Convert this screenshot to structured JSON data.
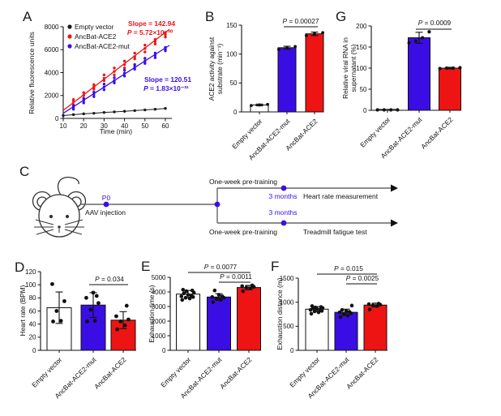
{
  "figure_bg": "#ffffff",
  "colors": {
    "black": "#1a1a1a",
    "red": "#ee1414",
    "blue": "#3b0de5",
    "white": "#ffffff",
    "diagram_line": "#666666"
  },
  "panel_labels": {
    "a": "A",
    "b": "B",
    "c": "C",
    "d": "D",
    "e": "E",
    "f": "F",
    "g": "G"
  },
  "panel_c": {
    "p0": "P0",
    "aav": "AAV injection",
    "pretrain_top": "One-week pre-training",
    "pretrain_bottom": "One-week pre-training",
    "months_top": "3 months",
    "months_bottom": "3 months",
    "outcome_top": "Heart rate measurement",
    "outcome_bottom": "Treadmill fatigue test"
  },
  "chart_data": [
    {
      "id": "A",
      "type": "scatter",
      "xlabel": "Time (min)",
      "ylabel": "Relative fluorescence units",
      "xlim": [
        10,
        62
      ],
      "ylim": [
        0,
        8000
      ],
      "xticks": [
        10,
        20,
        30,
        40,
        50,
        60
      ],
      "yticks": [
        0,
        2000,
        4000,
        6000,
        8000
      ],
      "legend_position": "top-left",
      "series": [
        {
          "name": "Empty vector",
          "color": "black",
          "connect": true,
          "points": [
            [
              10,
              250
            ],
            [
              15,
              330
            ],
            [
              20,
              400
            ],
            [
              25,
              450
            ],
            [
              30,
              520
            ],
            [
              35,
              570
            ],
            [
              40,
              620
            ],
            [
              45,
              680
            ],
            [
              50,
              740
            ],
            [
              55,
              800
            ],
            [
              60,
              870
            ]
          ]
        },
        {
          "name": "AncBat-ACE2",
          "color": "red",
          "slope_label": "Slope = 142.94",
          "p_label": "P = 5.72×10⁻³⁰",
          "fit": [
            [
              10,
              700
            ],
            [
              62,
              7780
            ]
          ],
          "points": [
            [
              15,
              1200
            ],
            [
              15,
              1450
            ],
            [
              15,
              1650
            ],
            [
              20,
              1750
            ],
            [
              20,
              2000
            ],
            [
              20,
              2250
            ],
            [
              25,
              2550
            ],
            [
              25,
              2750
            ],
            [
              25,
              2950
            ],
            [
              30,
              3300
            ],
            [
              30,
              3500
            ],
            [
              30,
              3800
            ],
            [
              35,
              3800
            ],
            [
              35,
              4100
            ],
            [
              35,
              4400
            ],
            [
              40,
              4400
            ],
            [
              40,
              4700
            ],
            [
              40,
              5000
            ],
            [
              45,
              5200
            ],
            [
              45,
              5400
            ],
            [
              45,
              5700
            ],
            [
              50,
              5800
            ],
            [
              50,
              6100
            ],
            [
              50,
              6400
            ],
            [
              55,
              6500
            ],
            [
              55,
              6700
            ],
            [
              55,
              6900
            ],
            [
              60,
              7100
            ],
            [
              60,
              7300
            ],
            [
              60,
              7500
            ]
          ]
        },
        {
          "name": "AncBat-ACE2-mut",
          "color": "blue",
          "slope_label": "Slope = 120.51",
          "p_label": "P = 1.83×10⁻³¹",
          "fit": [
            [
              10,
              450
            ],
            [
              62,
              6380
            ]
          ],
          "points": [
            [
              15,
              800
            ],
            [
              15,
              950
            ],
            [
              15,
              1100
            ],
            [
              20,
              1350
            ],
            [
              20,
              1550
            ],
            [
              20,
              1750
            ],
            [
              25,
              1900
            ],
            [
              25,
              2100
            ],
            [
              25,
              2300
            ],
            [
              30,
              2500
            ],
            [
              30,
              2750
            ],
            [
              30,
              3000
            ],
            [
              35,
              3100
            ],
            [
              35,
              3300
            ],
            [
              35,
              3550
            ],
            [
              40,
              3700
            ],
            [
              40,
              3950
            ],
            [
              40,
              4200
            ],
            [
              45,
              4300
            ],
            [
              45,
              4500
            ],
            [
              45,
              4700
            ],
            [
              50,
              4800
            ],
            [
              50,
              5000
            ],
            [
              50,
              5250
            ],
            [
              55,
              5300
            ],
            [
              55,
              5500
            ],
            [
              55,
              5700
            ],
            [
              60,
              5900
            ],
            [
              60,
              6050
            ],
            [
              60,
              6200
            ]
          ]
        }
      ]
    },
    {
      "id": "B",
      "type": "bar",
      "ylabel": [
        "ACE2 activity against",
        "substrate (min⁻¹)"
      ],
      "ylim": [
        0,
        150
      ],
      "yticks": [
        0,
        50,
        100,
        150
      ],
      "categories": [
        "Empty vector",
        "AncBat-ACE2-mut",
        "AncBat-ACE2"
      ],
      "bar_colors": [
        "white",
        "blue",
        "red"
      ],
      "values": [
        12,
        111,
        135
      ],
      "errors": [
        1.5,
        2.5,
        3
      ],
      "points": [
        [
          11,
          12,
          13
        ],
        [
          108,
          111,
          113
        ],
        [
          132,
          135,
          137
        ]
      ],
      "sig": [
        {
          "from": 1,
          "to": 2,
          "label": "P = 0.00027"
        }
      ]
    },
    {
      "id": "G",
      "type": "bar",
      "ylabel": [
        "Relative viral RNA in",
        "supernatant (%)"
      ],
      "ylim": [
        0,
        200
      ],
      "yticks": [
        0,
        50,
        100,
        150,
        200
      ],
      "categories": [
        "Empty vector",
        "AncBat-ACE2-mut",
        "AncBat-ACE2"
      ],
      "bar_colors": [
        "white",
        "blue",
        "red"
      ],
      "values": [
        2,
        172,
        100
      ],
      "errors": [
        0,
        13,
        2
      ],
      "points": [
        [
          1,
          1,
          1,
          1
        ],
        [
          160,
          164,
          172,
          186
        ],
        [
          99,
          100,
          100,
          101
        ]
      ],
      "sig": [
        {
          "from": 1,
          "to": 2,
          "label": "P = 0.0009"
        }
      ]
    },
    {
      "id": "D",
      "type": "bar",
      "ylabel": "Heart rate (BPM)",
      "ylim": [
        0,
        120
      ],
      "yticks": [
        0,
        20,
        40,
        60,
        80,
        100,
        120
      ],
      "categories": [
        "Empty vector",
        "AncBat-ACE2-mut",
        "AncBat-ACE2"
      ],
      "bar_colors": [
        "white",
        "blue",
        "red"
      ],
      "values": [
        65,
        69,
        46
      ],
      "errors": [
        24,
        19,
        13
      ],
      "points": [
        [
          44,
          45,
          60,
          75,
          101
        ],
        [
          44,
          45,
          62,
          72,
          80,
          83,
          88
        ],
        [
          32,
          38,
          44,
          47,
          52,
          68
        ]
      ],
      "sig": [
        {
          "from": 1,
          "to": 2,
          "label": "P = 0.034"
        }
      ]
    },
    {
      "id": "E",
      "type": "bar",
      "ylabel": "Exhaustion time (s)",
      "ylim": [
        0,
        5000
      ],
      "yticks": [
        0,
        1000,
        2000,
        3000,
        4000,
        5000
      ],
      "categories": [
        "Empty vector",
        "AncBat-ACE2-mut",
        "AncBat-ACE2"
      ],
      "bar_colors": [
        "white",
        "blue",
        "red"
      ],
      "values": [
        3850,
        3650,
        4300
      ],
      "errors": [
        250,
        230,
        150
      ],
      "points": [
        [
          3450,
          3550,
          3600,
          3650,
          3700,
          3750,
          3800,
          3900,
          3950,
          4050,
          4100,
          4150
        ],
        [
          3300,
          3450,
          3550,
          3600,
          3650,
          3700,
          3800,
          4100
        ],
        [
          4050,
          4250,
          4300,
          4350,
          4400,
          4450
        ]
      ],
      "sig": [
        {
          "from": 0,
          "to": 2,
          "label": "P = 0.0077"
        },
        {
          "from": 1,
          "to": 2,
          "label": "P = 0.0011"
        }
      ]
    },
    {
      "id": "F",
      "type": "bar",
      "ylabel": "Exhaustion distance (m)",
      "ylim": [
        0,
        1500
      ],
      "yticks": [
        0,
        500,
        1000,
        1500
      ],
      "categories": [
        "Empty vector",
        "AncBat-ACE2-mut",
        "AncBat-ACE2"
      ],
      "bar_colors": [
        "white",
        "blue",
        "red"
      ],
      "values": [
        855,
        790,
        940
      ],
      "errors": [
        55,
        65,
        40
      ],
      "points": [
        [
          760,
          790,
          810,
          820,
          840,
          850,
          860,
          870,
          880,
          890,
          900,
          920
        ],
        [
          690,
          720,
          750,
          770,
          790,
          800,
          820,
          840,
          930
        ],
        [
          850,
          920,
          935,
          950,
          960,
          970
        ]
      ],
      "sig": [
        {
          "from": 0,
          "to": 2,
          "label": "P = 0.015"
        },
        {
          "from": 1,
          "to": 2,
          "label": "P = 0.0025"
        }
      ]
    }
  ]
}
